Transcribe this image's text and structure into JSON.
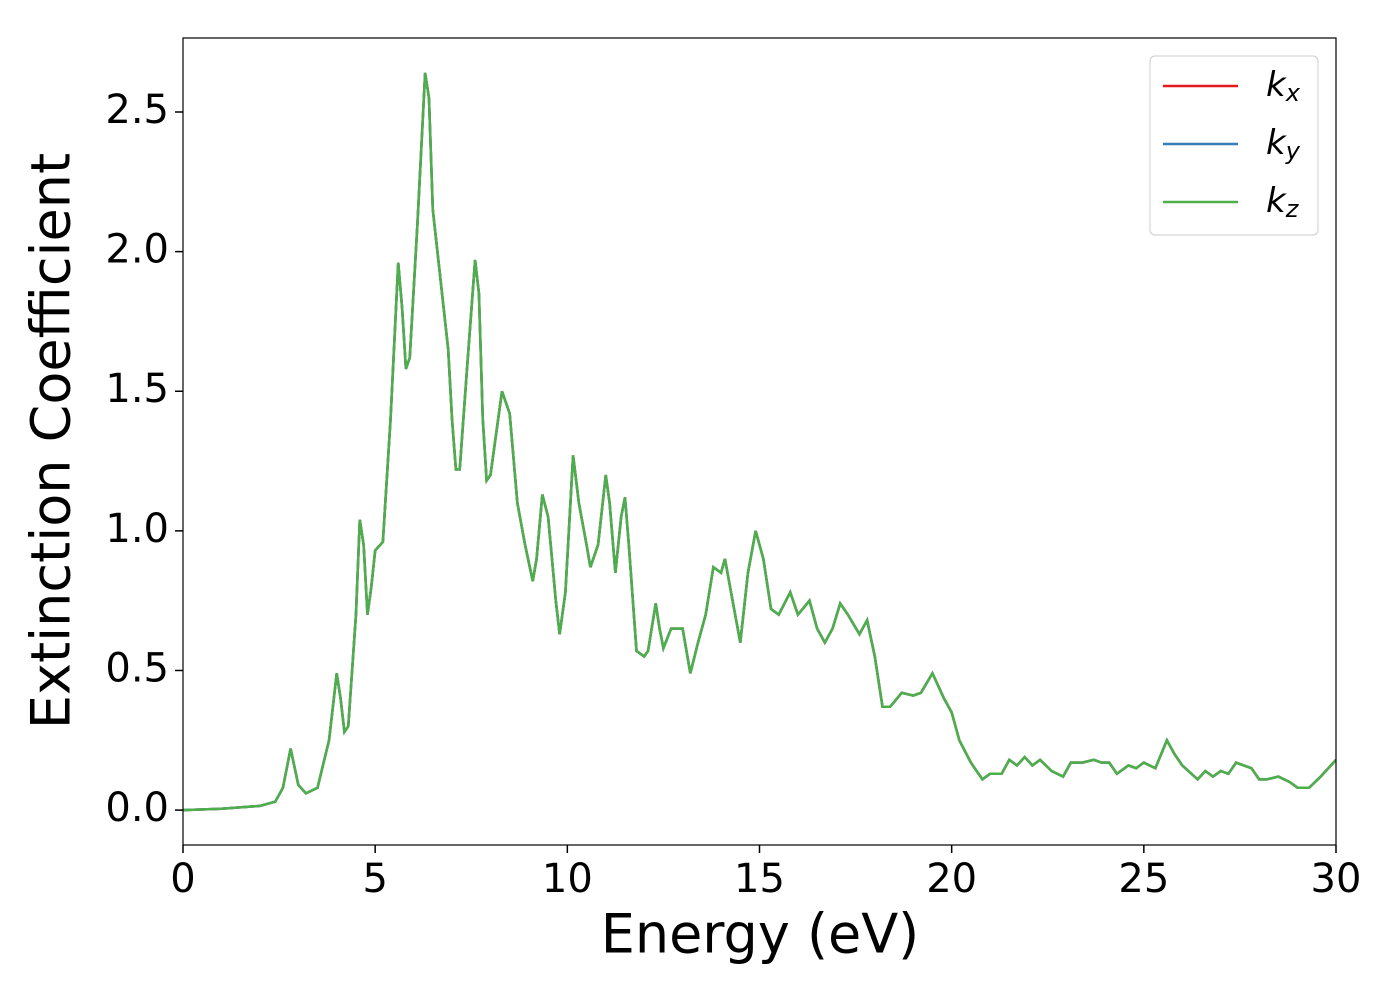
{
  "chart_data": {
    "type": "line",
    "xlabel": "Energy (eV)",
    "ylabel": "Extinction Coefficient",
    "xlim": [
      0,
      30
    ],
    "ylim": [
      -0.125,
      2.765
    ],
    "xticks": [
      0,
      5,
      10,
      15,
      20,
      25,
      30
    ],
    "yticks": [
      {
        "value": 0,
        "label": "0.0"
      },
      {
        "value": 0.5,
        "label": "0.5"
      },
      {
        "value": 1,
        "label": "1.0"
      },
      {
        "value": 1.5,
        "label": "1.5"
      },
      {
        "value": 2,
        "label": "2.0"
      },
      {
        "value": 2.5,
        "label": "2.5"
      }
    ],
    "grid": false,
    "legend": "upper right",
    "x": [
      0,
      1,
      2,
      2.4,
      2.6,
      2.8,
      3.0,
      3.2,
      3.5,
      3.8,
      4.0,
      4.1,
      4.2,
      4.3,
      4.5,
      4.6,
      4.7,
      4.8,
      4.9,
      5.0,
      5.2,
      5.4,
      5.6,
      5.7,
      5.8,
      5.9,
      6.1,
      6.3,
      6.4,
      6.5,
      6.7,
      6.9,
      7.0,
      7.1,
      7.2,
      7.4,
      7.6,
      7.7,
      7.8,
      7.9,
      8.0,
      8.2,
      8.3,
      8.5,
      8.7,
      8.9,
      9.1,
      9.2,
      9.35,
      9.5,
      9.7,
      9.8,
      9.95,
      10.15,
      10.3,
      10.5,
      10.6,
      10.8,
      11.0,
      11.1,
      11.25,
      11.4,
      11.5,
      11.6,
      11.8,
      12.0,
      12.1,
      12.3,
      12.4,
      12.5,
      12.7,
      13.0,
      13.2,
      13.4,
      13.6,
      13.8,
      14.0,
      14.1,
      14.3,
      14.5,
      14.7,
      14.9,
      15.1,
      15.3,
      15.5,
      15.8,
      16.0,
      16.3,
      16.5,
      16.7,
      16.9,
      17.1,
      17.3,
      17.6,
      17.8,
      18.0,
      18.2,
      18.4,
      18.7,
      19.0,
      19.2,
      19.5,
      19.8,
      20.0,
      20.2,
      20.5,
      20.8,
      21.0,
      21.3,
      21.5,
      21.7,
      21.9,
      22.1,
      22.3,
      22.6,
      22.9,
      23.1,
      23.4,
      23.7,
      23.9,
      24.1,
      24.3,
      24.6,
      24.8,
      25.0,
      25.3,
      25.6,
      25.8,
      26.0,
      26.4,
      26.6,
      26.8,
      27.0,
      27.2,
      27.4,
      27.6,
      27.8,
      28.0,
      28.2,
      28.5,
      28.8,
      29.0,
      29.3,
      29.6,
      30.0
    ],
    "series": [
      {
        "name": "kx",
        "color": "#e41a1c",
        "values": [
          0,
          0.005,
          0.015,
          0.03,
          0.08,
          0.22,
          0.09,
          0.06,
          0.08,
          0.25,
          0.49,
          0.4,
          0.28,
          0.3,
          0.7,
          1.04,
          0.95,
          0.7,
          0.8,
          0.93,
          0.96,
          1.4,
          1.96,
          1.8,
          1.58,
          1.62,
          2.1,
          2.64,
          2.55,
          2.15,
          1.9,
          1.65,
          1.4,
          1.22,
          1.22,
          1.6,
          1.97,
          1.85,
          1.4,
          1.18,
          1.2,
          1.4,
          1.5,
          1.42,
          1.1,
          0.95,
          0.82,
          0.9,
          1.13,
          1.05,
          0.75,
          0.63,
          0.78,
          1.27,
          1.1,
          0.95,
          0.87,
          0.95,
          1.2,
          1.1,
          0.85,
          1.05,
          1.12,
          0.95,
          0.57,
          0.55,
          0.57,
          0.74,
          0.65,
          0.58,
          0.65,
          0.65,
          0.49,
          0.6,
          0.7,
          0.87,
          0.85,
          0.9,
          0.75,
          0.6,
          0.85,
          1.0,
          0.9,
          0.72,
          0.7,
          0.78,
          0.7,
          0.75,
          0.65,
          0.6,
          0.65,
          0.74,
          0.7,
          0.63,
          0.68,
          0.55,
          0.37,
          0.37,
          0.42,
          0.41,
          0.42,
          0.49,
          0.4,
          0.35,
          0.25,
          0.17,
          0.11,
          0.13,
          0.13,
          0.18,
          0.16,
          0.19,
          0.16,
          0.18,
          0.14,
          0.12,
          0.17,
          0.17,
          0.18,
          0.17,
          0.17,
          0.13,
          0.16,
          0.15,
          0.17,
          0.15,
          0.25,
          0.2,
          0.16,
          0.11,
          0.14,
          0.12,
          0.14,
          0.13,
          0.17,
          0.16,
          0.15,
          0.11,
          0.11,
          0.12,
          0.1,
          0.08,
          0.08,
          0.12,
          0.18
        ]
      },
      {
        "name": "ky",
        "color": "#377eb8",
        "values": [
          0,
          0.005,
          0.015,
          0.03,
          0.08,
          0.22,
          0.09,
          0.06,
          0.08,
          0.25,
          0.49,
          0.4,
          0.28,
          0.3,
          0.7,
          1.04,
          0.95,
          0.7,
          0.8,
          0.93,
          0.96,
          1.4,
          1.96,
          1.8,
          1.58,
          1.62,
          2.1,
          2.64,
          2.55,
          2.15,
          1.9,
          1.65,
          1.4,
          1.22,
          1.22,
          1.6,
          1.97,
          1.85,
          1.4,
          1.18,
          1.2,
          1.4,
          1.5,
          1.42,
          1.1,
          0.95,
          0.82,
          0.9,
          1.13,
          1.05,
          0.75,
          0.63,
          0.78,
          1.27,
          1.1,
          0.95,
          0.87,
          0.95,
          1.2,
          1.1,
          0.85,
          1.05,
          1.12,
          0.95,
          0.57,
          0.55,
          0.57,
          0.74,
          0.65,
          0.58,
          0.65,
          0.65,
          0.49,
          0.6,
          0.7,
          0.87,
          0.85,
          0.9,
          0.75,
          0.6,
          0.85,
          1.0,
          0.9,
          0.72,
          0.7,
          0.78,
          0.7,
          0.75,
          0.65,
          0.6,
          0.65,
          0.74,
          0.7,
          0.63,
          0.68,
          0.55,
          0.37,
          0.37,
          0.42,
          0.41,
          0.42,
          0.49,
          0.4,
          0.35,
          0.25,
          0.17,
          0.11,
          0.13,
          0.13,
          0.18,
          0.16,
          0.19,
          0.16,
          0.18,
          0.14,
          0.12,
          0.17,
          0.17,
          0.18,
          0.17,
          0.17,
          0.13,
          0.16,
          0.15,
          0.17,
          0.15,
          0.25,
          0.2,
          0.16,
          0.11,
          0.14,
          0.12,
          0.14,
          0.13,
          0.17,
          0.16,
          0.15,
          0.11,
          0.11,
          0.12,
          0.1,
          0.08,
          0.08,
          0.12,
          0.18
        ]
      },
      {
        "name": "kz",
        "color": "#4daf4a",
        "values": [
          0,
          0.005,
          0.015,
          0.03,
          0.08,
          0.22,
          0.09,
          0.06,
          0.08,
          0.25,
          0.49,
          0.4,
          0.28,
          0.3,
          0.7,
          1.04,
          0.95,
          0.7,
          0.8,
          0.93,
          0.96,
          1.4,
          1.96,
          1.8,
          1.58,
          1.62,
          2.1,
          2.64,
          2.55,
          2.15,
          1.9,
          1.65,
          1.4,
          1.22,
          1.22,
          1.6,
          1.97,
          1.85,
          1.4,
          1.18,
          1.2,
          1.4,
          1.5,
          1.42,
          1.1,
          0.95,
          0.82,
          0.9,
          1.13,
          1.05,
          0.75,
          0.63,
          0.78,
          1.27,
          1.1,
          0.95,
          0.87,
          0.95,
          1.2,
          1.1,
          0.85,
          1.05,
          1.12,
          0.95,
          0.57,
          0.55,
          0.57,
          0.74,
          0.65,
          0.58,
          0.65,
          0.65,
          0.49,
          0.6,
          0.7,
          0.87,
          0.85,
          0.9,
          0.75,
          0.6,
          0.85,
          1.0,
          0.9,
          0.72,
          0.7,
          0.78,
          0.7,
          0.75,
          0.65,
          0.6,
          0.65,
          0.74,
          0.7,
          0.63,
          0.68,
          0.55,
          0.37,
          0.37,
          0.42,
          0.41,
          0.42,
          0.49,
          0.4,
          0.35,
          0.25,
          0.17,
          0.11,
          0.13,
          0.13,
          0.18,
          0.16,
          0.19,
          0.16,
          0.18,
          0.14,
          0.12,
          0.17,
          0.17,
          0.18,
          0.17,
          0.17,
          0.13,
          0.16,
          0.15,
          0.17,
          0.15,
          0.25,
          0.2,
          0.16,
          0.11,
          0.14,
          0.12,
          0.14,
          0.13,
          0.17,
          0.16,
          0.15,
          0.11,
          0.11,
          0.12,
          0.1,
          0.08,
          0.08,
          0.12,
          0.18
        ]
      }
    ]
  }
}
